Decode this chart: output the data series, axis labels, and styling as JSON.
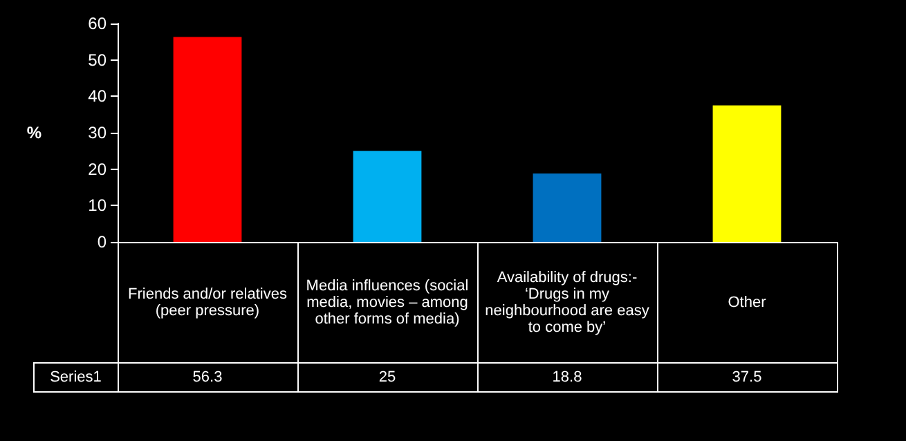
{
  "chart_data": {
    "type": "bar",
    "categories": [
      "Friends and/or relatives (peer pressure)",
      "Media influences (social media, movies – among other forms of media)",
      "Availability of drugs:- ‘Drugs in my neighbourhood are easy to come by’",
      "Other"
    ],
    "series": [
      {
        "name": "Series1",
        "values": [
          56.3,
          25,
          18.8,
          37.5
        ],
        "colors": [
          "#ff0000",
          "#00b0f0",
          "#0070c0",
          "#ffff00"
        ]
      }
    ],
    "ylabel": "%",
    "ylim": [
      0,
      60
    ],
    "yticks": [
      0,
      10,
      20,
      30,
      40,
      50,
      60
    ],
    "grid": false,
    "legend": false,
    "data_labels": true
  }
}
